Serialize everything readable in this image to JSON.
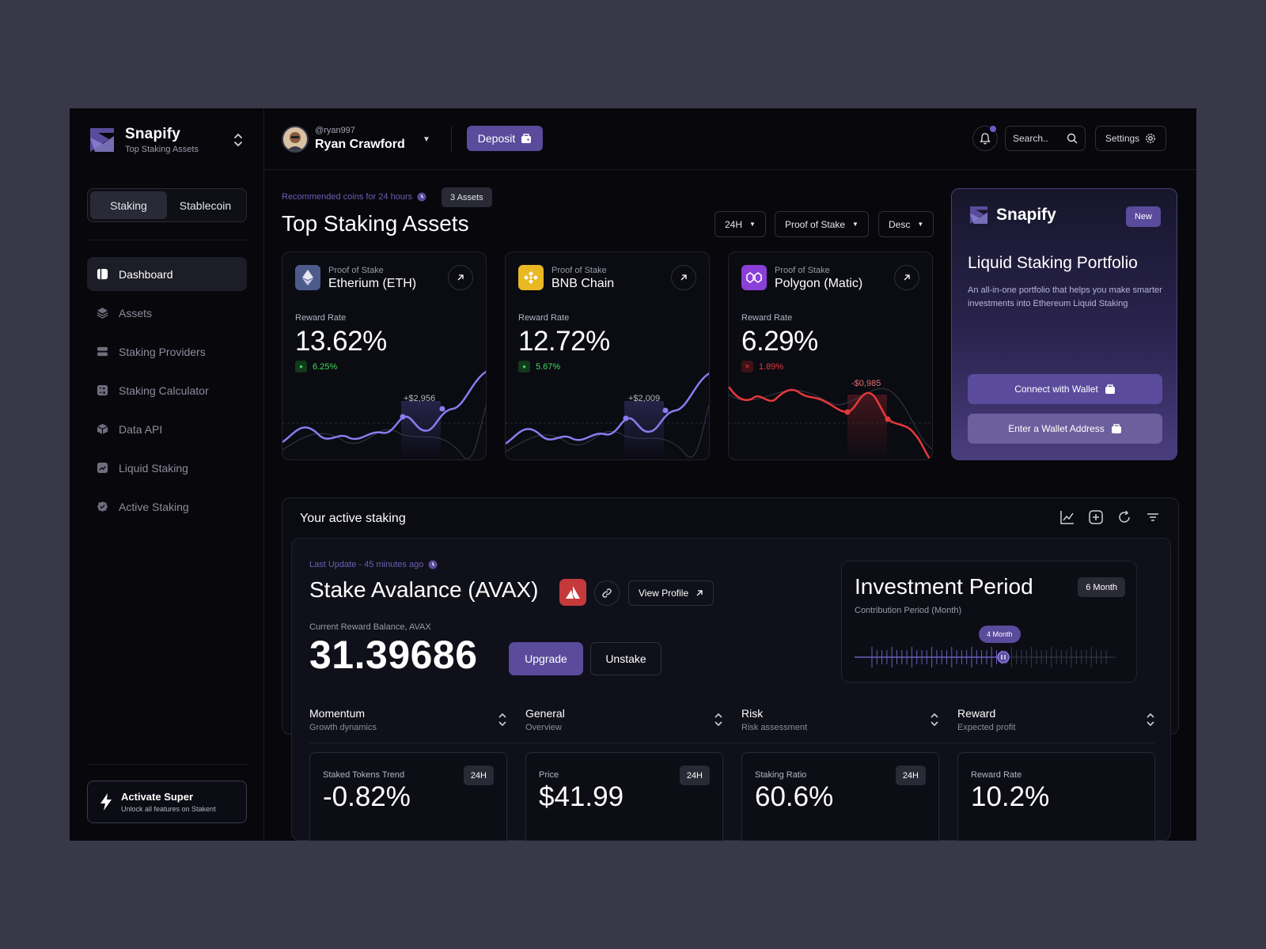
{
  "brand": {
    "name": "Snapify",
    "subtitle": "Top Staking Assets"
  },
  "sidebar": {
    "segments": [
      "Staking",
      "Stablecoin"
    ],
    "items": [
      {
        "label": "Dashboard",
        "icon": "dashboard-icon",
        "active": true
      },
      {
        "label": "Assets",
        "icon": "layers-icon"
      },
      {
        "label": "Staking Providers",
        "icon": "server-icon"
      },
      {
        "label": "Staking Calculator",
        "icon": "calculator-icon"
      },
      {
        "label": "Data API",
        "icon": "cube-icon"
      },
      {
        "label": "Liquid Staking",
        "icon": "trend-icon"
      },
      {
        "label": "Active Staking",
        "icon": "badge-check-icon"
      }
    ],
    "promo": {
      "title": "Activate Super",
      "subtitle": "Unlock all features on Stakent"
    }
  },
  "header": {
    "handle": "@ryan997",
    "user": "Ryan Crawford",
    "deposit": "Deposit",
    "search_placeholder": "Search..",
    "settings": "Settings"
  },
  "main": {
    "recommended": "Recommended coins for 24 hours",
    "assets_badge": "3 Assets",
    "title": "Top Staking Assets",
    "filters": [
      "24H",
      "Proof of Stake",
      "Desc"
    ],
    "cards": [
      {
        "kind": "Proof of Stake",
        "name": "Etherium (ETH)",
        "reward_label": "Reward Rate",
        "rate": "13.62%",
        "change": "6.25%",
        "trend": "up",
        "chart_label": "+$2,956",
        "color": "#8b7cf0"
      },
      {
        "kind": "Proof of Stake",
        "name": "BNB Chain",
        "reward_label": "Reward Rate",
        "rate": "12.72%",
        "change": "5.67%",
        "trend": "up",
        "chart_label": "+$2,009",
        "color": "#8b7cf0"
      },
      {
        "kind": "Proof of Stake",
        "name": "Polygon (Matic)",
        "reward_label": "Reward Rate",
        "rate": "6.29%",
        "change": "1.89%",
        "trend": "down",
        "chart_label": "-$0,985",
        "color": "#e5383b"
      }
    ]
  },
  "promo_card": {
    "brand": "Snapify",
    "badge": "New",
    "title": "Liquid Staking Portfolio",
    "desc": "An all-in-one portfolio that helps you make smarter investments into Ethereum Liquid Staking",
    "connect": "Connect with Wallet",
    "enter": "Enter a Wallet Address"
  },
  "active": {
    "title": "Your active staking",
    "last_update": "Last Update - 45 minutes ago",
    "stake_name": "Stake Avalance (AVAX)",
    "view_profile": "View Profile",
    "balance_label": "Current Reward Balance, AVAX",
    "balance": "31.39686",
    "upgrade": "Upgrade",
    "unstake": "Unstake",
    "investment": {
      "title": "Investment Period",
      "badge": "6 Month",
      "subtitle": "Contribution Period (Month)",
      "marker": "4 Month"
    },
    "metrics": [
      {
        "title": "Momentum",
        "sub": "Growth dynamics"
      },
      {
        "title": "General",
        "sub": "Overview"
      },
      {
        "title": "Risk",
        "sub": "Risk assessment"
      },
      {
        "title": "Reward",
        "sub": "Expected profit"
      }
    ],
    "stats": [
      {
        "label": "Staked Tokens Trend",
        "value": "-0.82%",
        "badge": "24H"
      },
      {
        "label": "Price",
        "value": "$41.99",
        "badge": "24H"
      },
      {
        "label": "Staking Ratio",
        "value": "60.6%",
        "badge": "24H"
      },
      {
        "label": "Reward Rate",
        "value": "10.2%",
        "badge": ""
      }
    ]
  },
  "colors": {
    "accent": "#5a4b9c",
    "up": "#3ddc5a",
    "down": "#e5383b"
  }
}
